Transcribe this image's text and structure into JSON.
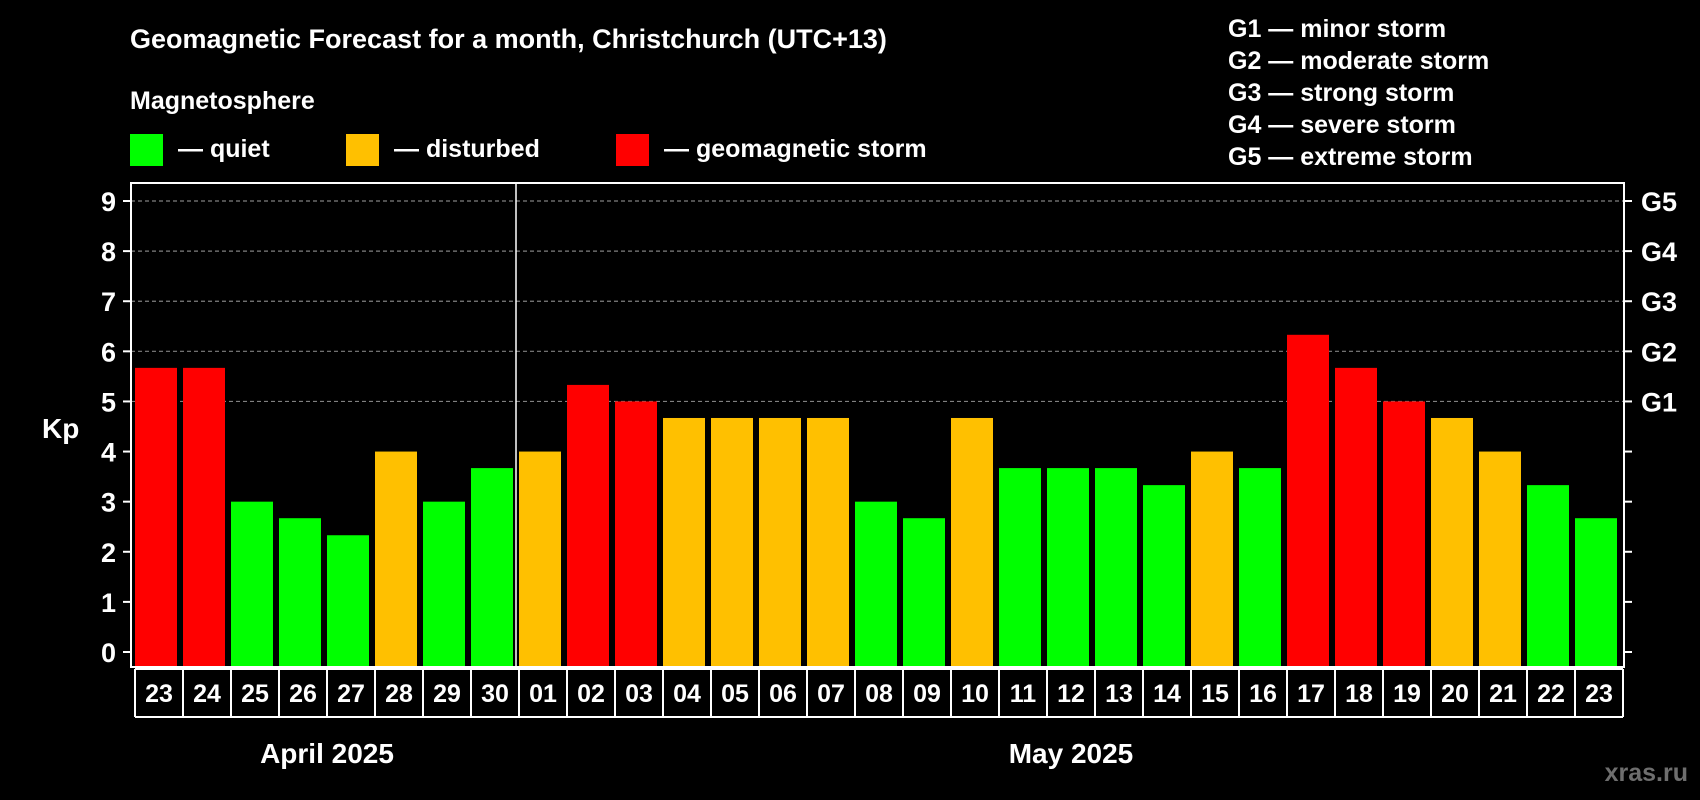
{
  "colors": {
    "background": "#000000",
    "quiet": "#00ff00",
    "disturbed": "#ffc000",
    "storm": "#ff0000",
    "text": "#ffffff",
    "grid": "#808080",
    "watermark": "#6e6e6e"
  },
  "watermark": "xras.ru",
  "chart_data": {
    "type": "bar",
    "title": "Geomagnetic Forecast for a month, Christchurch (UTC+13)",
    "ylabel": "Kp",
    "ylim": [
      0,
      9
    ],
    "yticks": [
      "0",
      "1",
      "2",
      "3",
      "4",
      "5",
      "6",
      "7",
      "8",
      "9"
    ],
    "grid": "horizontal dashed at 5–9",
    "legend": {
      "heading": "Magnetosphere",
      "items": [
        {
          "label": "— quiet",
          "color": "#00ff00"
        },
        {
          "label": "— disturbed",
          "color": "#ffc000"
        },
        {
          "label": "— geomagnetic storm",
          "color": "#ff0000"
        }
      ]
    },
    "storm_scale": [
      {
        "level": "G1",
        "kp": 5,
        "text": "G1 — minor storm"
      },
      {
        "level": "G2",
        "kp": 6,
        "text": "G2 — moderate storm"
      },
      {
        "level": "G3",
        "kp": 7,
        "text": "G3 — strong storm"
      },
      {
        "level": "G4",
        "kp": 8,
        "text": "G4 — severe storm"
      },
      {
        "level": "G5",
        "kp": 9,
        "text": "G5 — extreme storm"
      }
    ],
    "categories": [
      "23",
      "24",
      "25",
      "26",
      "27",
      "28",
      "29",
      "30",
      "01",
      "02",
      "03",
      "04",
      "05",
      "06",
      "07",
      "08",
      "09",
      "10",
      "11",
      "12",
      "13",
      "14",
      "15",
      "16",
      "17",
      "18",
      "19",
      "20",
      "21",
      "22",
      "23"
    ],
    "values": [
      5.67,
      5.67,
      3.0,
      2.67,
      2.33,
      4.0,
      3.0,
      3.67,
      4.0,
      5.33,
      5.0,
      4.67,
      4.67,
      4.67,
      4.67,
      3.0,
      2.67,
      4.67,
      3.67,
      3.67,
      3.67,
      3.33,
      4.0,
      3.67,
      6.33,
      5.67,
      5.0,
      4.67,
      4.0,
      3.33,
      2.67
    ],
    "status": [
      "storm",
      "storm",
      "quiet",
      "quiet",
      "quiet",
      "disturbed",
      "quiet",
      "quiet",
      "disturbed",
      "storm",
      "storm",
      "disturbed",
      "disturbed",
      "disturbed",
      "disturbed",
      "quiet",
      "quiet",
      "disturbed",
      "quiet",
      "quiet",
      "quiet",
      "quiet",
      "disturbed",
      "quiet",
      "storm",
      "storm",
      "storm",
      "disturbed",
      "disturbed",
      "quiet",
      "quiet"
    ],
    "months": [
      {
        "label": "April 2025",
        "count": 8
      },
      {
        "label": "May 2025",
        "count": 23
      }
    ]
  }
}
